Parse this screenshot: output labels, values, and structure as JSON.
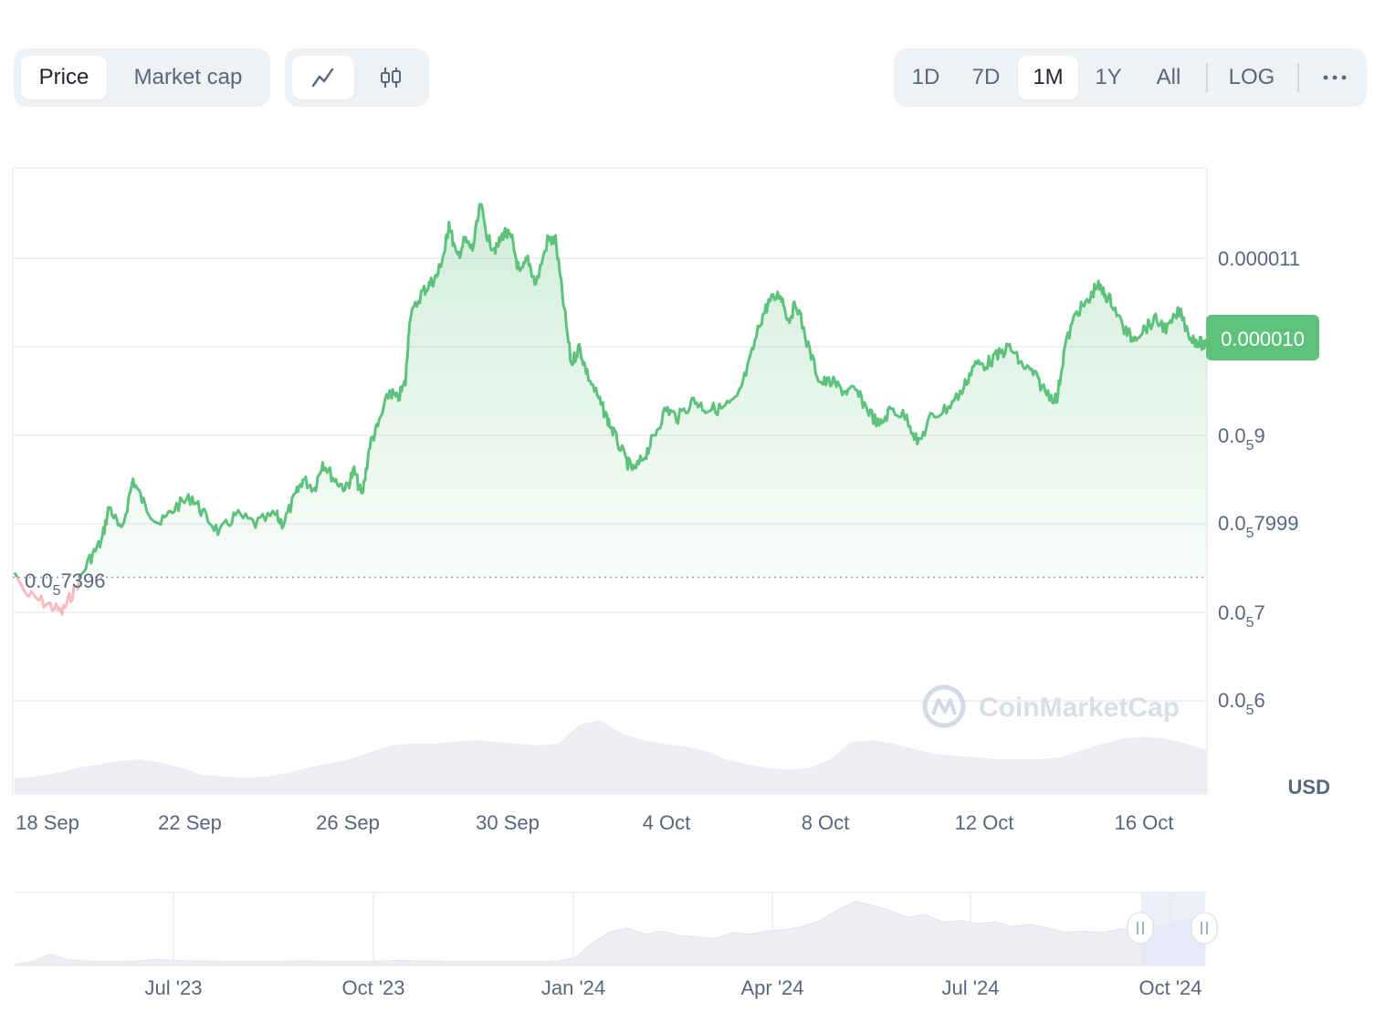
{
  "toolbar": {
    "metric_tabs": [
      {
        "label": "Price",
        "active": true
      },
      {
        "label": "Market cap",
        "active": false
      }
    ],
    "chart_types": [
      {
        "icon": "line-chart-icon",
        "active": true
      },
      {
        "icon": "candlestick-icon",
        "active": false
      }
    ],
    "ranges": [
      {
        "label": "1D",
        "active": false
      },
      {
        "label": "7D",
        "active": false
      },
      {
        "label": "1M",
        "active": true
      },
      {
        "label": "1Y",
        "active": false
      },
      {
        "label": "All",
        "active": false
      }
    ],
    "log_label": "LOG",
    "more_icon": "more-dots-icon"
  },
  "colors": {
    "up_line": "#5ec27d",
    "down_line": "#ea6b74",
    "price_badge_bg": "#5ec27d",
    "volume": "#eceef3",
    "grid": "#eff2f5",
    "navigator_selection": "#e2e8f7"
  },
  "chart_data": {
    "type": "line",
    "y_unit": "USD",
    "y_ticks": [
      {
        "value": 6e-06,
        "prefix": "0.0",
        "sub": "5",
        "suffix": "6"
      },
      {
        "value": 7e-06,
        "prefix": "0.0",
        "sub": "5",
        "suffix": "7"
      },
      {
        "value": 7.9999e-06,
        "prefix": "0.0",
        "sub": "5",
        "suffix": "7999"
      },
      {
        "value": 9e-06,
        "prefix": "0.0",
        "sub": "5",
        "suffix": "9"
      },
      {
        "value": 1e-05,
        "prefix": "",
        "sub": "",
        "suffix": "0.000010"
      },
      {
        "value": 1.1e-05,
        "prefix": "",
        "sub": "",
        "suffix": "0.000011"
      }
    ],
    "x_ticks": [
      "18 Sep",
      "22 Sep",
      "26 Sep",
      "30 Sep",
      "4 Oct",
      "8 Oct",
      "12 Oct",
      "16 Oct"
    ],
    "x_tick_days": [
      1.0,
      4.6,
      8.6,
      12.6,
      16.6,
      20.6,
      24.6,
      28.6
    ],
    "x_range_days": [
      0,
      30.2
    ],
    "baseline": {
      "value": 7.396e-06,
      "prefix": "0.0",
      "sub": "5",
      "suffix": "7396"
    },
    "current_price_label": "0.000010",
    "price_series": [
      [
        0.0,
        7.45e-06
      ],
      [
        0.3,
        7.2e-06
      ],
      [
        0.8,
        7.1e-06
      ],
      [
        1.2,
        7e-06
      ],
      [
        1.5,
        7.24e-06
      ],
      [
        1.9,
        7.6e-06
      ],
      [
        2.2,
        7.8e-06
      ],
      [
        2.4,
        8.2e-06
      ],
      [
        2.7,
        7.9e-06
      ],
      [
        3.0,
        8.5e-06
      ],
      [
        3.3,
        8.2e-06
      ],
      [
        3.7,
        8e-06
      ],
      [
        4.1,
        8.2e-06
      ],
      [
        4.5,
        8.3e-06
      ],
      [
        4.8,
        8.1e-06
      ],
      [
        5.2,
        7.9e-06
      ],
      [
        5.6,
        8.1e-06
      ],
      [
        6.1,
        8e-06
      ],
      [
        6.6,
        8.1e-06
      ],
      [
        6.8,
        8e-06
      ],
      [
        7.1,
        8.3e-06
      ],
      [
        7.3,
        8.5e-06
      ],
      [
        7.6,
        8.4e-06
      ],
      [
        7.8,
        8.7e-06
      ],
      [
        8.1,
        8.5e-06
      ],
      [
        8.4,
        8.4e-06
      ],
      [
        8.6,
        8.6e-06
      ],
      [
        8.8,
        8.3e-06
      ],
      [
        9.0,
        8.9e-06
      ],
      [
        9.2,
        9.1e-06
      ],
      [
        9.5,
        9.5e-06
      ],
      [
        9.7,
        9.4e-06
      ],
      [
        9.9,
        9.6e-06
      ],
      [
        10.0,
        1.03e-05
      ],
      [
        10.3,
        1.06e-05
      ],
      [
        10.5,
        1.07e-05
      ],
      [
        10.7,
        1.08e-05
      ],
      [
        10.9,
        1.11e-05
      ],
      [
        11.0,
        1.14e-05
      ],
      [
        11.2,
        1.1e-05
      ],
      [
        11.4,
        1.12e-05
      ],
      [
        11.6,
        1.11e-05
      ],
      [
        11.8,
        1.16e-05
      ],
      [
        12.0,
        1.12e-05
      ],
      [
        12.2,
        1.11e-05
      ],
      [
        12.4,
        1.13e-05
      ],
      [
        12.6,
        1.12e-05
      ],
      [
        12.8,
        1.08e-05
      ],
      [
        13.0,
        1.1e-05
      ],
      [
        13.2,
        1.07e-05
      ],
      [
        13.5,
        1.12e-05
      ],
      [
        13.7,
        1.12e-05
      ],
      [
        13.9,
        1.05e-05
      ],
      [
        14.1,
        9.8e-06
      ],
      [
        14.3,
        1e-05
      ],
      [
        14.5,
        9.7e-06
      ],
      [
        14.8,
        9.4e-06
      ],
      [
        15.0,
        9.2e-06
      ],
      [
        15.2,
        9e-06
      ],
      [
        15.5,
        8.7e-06
      ],
      [
        15.7,
        8.6e-06
      ],
      [
        16.0,
        8.8e-06
      ],
      [
        16.2,
        9e-06
      ],
      [
        16.5,
        9.3e-06
      ],
      [
        16.8,
        9.2e-06
      ],
      [
        17.2,
        9.4e-06
      ],
      [
        17.5,
        9.3e-06
      ],
      [
        17.9,
        9.3e-06
      ],
      [
        18.3,
        9.4e-06
      ],
      [
        18.6,
        9.8e-06
      ],
      [
        18.9,
        1.03e-05
      ],
      [
        19.1,
        1.05e-05
      ],
      [
        19.4,
        1.06e-05
      ],
      [
        19.6,
        1.03e-05
      ],
      [
        19.8,
        1.05e-05
      ],
      [
        20.1,
        1e-05
      ],
      [
        20.4,
        9.6e-06
      ],
      [
        20.7,
        9.6e-06
      ],
      [
        21.0,
        9.5e-06
      ],
      [
        21.3,
        9.5e-06
      ],
      [
        21.6,
        9.3e-06
      ],
      [
        21.9,
        9.1e-06
      ],
      [
        22.2,
        9.3e-06
      ],
      [
        22.6,
        9.2e-06
      ],
      [
        22.9,
        8.9e-06
      ],
      [
        23.2,
        9.2e-06
      ],
      [
        23.6,
        9.3e-06
      ],
      [
        24.0,
        9.5e-06
      ],
      [
        24.3,
        9.8e-06
      ],
      [
        24.6,
        9.8e-06
      ],
      [
        24.9,
        9.9e-06
      ],
      [
        25.2,
        1e-05
      ],
      [
        25.5,
        9.8e-06
      ],
      [
        25.8,
        9.7e-06
      ],
      [
        26.1,
        9.5e-06
      ],
      [
        26.4,
        9.4e-06
      ],
      [
        26.6,
        1e-05
      ],
      [
        26.9,
        1.04e-05
      ],
      [
        27.2,
        1.05e-05
      ],
      [
        27.4,
        1.07e-05
      ],
      [
        27.6,
        1.06e-05
      ],
      [
        27.8,
        1.05e-05
      ],
      [
        28.1,
        1.02e-05
      ],
      [
        28.3,
        1.01e-05
      ],
      [
        28.6,
        1.02e-05
      ],
      [
        28.9,
        1.03e-05
      ],
      [
        29.2,
        1.02e-05
      ],
      [
        29.5,
        1.04e-05
      ],
      [
        29.8,
        1.01e-05
      ],
      [
        30.0,
        1.005e-05
      ],
      [
        30.2,
        1e-05
      ]
    ],
    "volume_series": [
      0.18,
      0.2,
      0.24,
      0.3,
      0.34,
      0.38,
      0.4,
      0.36,
      0.3,
      0.22,
      0.2,
      0.19,
      0.2,
      0.24,
      0.3,
      0.35,
      0.4,
      0.48,
      0.56,
      0.58,
      0.58,
      0.6,
      0.62,
      0.6,
      0.58,
      0.56,
      0.58,
      0.8,
      0.85,
      0.7,
      0.62,
      0.58,
      0.55,
      0.5,
      0.4,
      0.34,
      0.3,
      0.28,
      0.3,
      0.4,
      0.6,
      0.62,
      0.58,
      0.52,
      0.46,
      0.44,
      0.42,
      0.4,
      0.4,
      0.4,
      0.42,
      0.5,
      0.58,
      0.64,
      0.66,
      0.64,
      0.58,
      0.5
    ],
    "navigator": {
      "x_ticks": [
        "Jul '23",
        "Oct '23",
        "Jan '24",
        "Apr '24",
        "Jul '24",
        "Oct '24"
      ],
      "series": [
        0.02,
        0.05,
        0.15,
        0.08,
        0.06,
        0.05,
        0.05,
        0.06,
        0.08,
        0.07,
        0.06,
        0.06,
        0.05,
        0.05,
        0.05,
        0.05,
        0.06,
        0.06,
        0.05,
        0.05,
        0.05,
        0.06,
        0.07,
        0.06,
        0.06,
        0.05,
        0.05,
        0.05,
        0.05,
        0.05,
        0.05,
        0.06,
        0.1,
        0.3,
        0.45,
        0.5,
        0.42,
        0.46,
        0.4,
        0.38,
        0.36,
        0.44,
        0.42,
        0.46,
        0.48,
        0.52,
        0.6,
        0.74,
        0.86,
        0.8,
        0.74,
        0.64,
        0.68,
        0.58,
        0.6,
        0.56,
        0.58,
        0.52,
        0.55,
        0.5,
        0.44,
        0.46,
        0.44,
        0.48,
        0.5,
        0.52,
        0.56,
        0.62,
        0.6
      ]
    }
  },
  "watermark": "CoinMarketCap"
}
